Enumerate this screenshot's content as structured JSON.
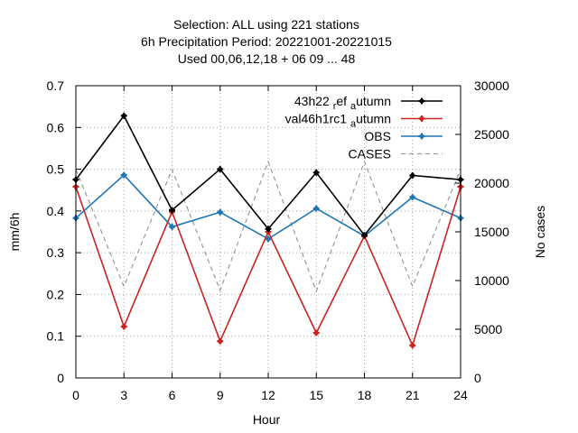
{
  "chart_data": {
    "type": "line",
    "title_lines": [
      "Selection: ALL using   221 stations",
      "6h Precipitation   Period: 20221001-20221015",
      "Used  00,06,12,18  + 06 09 ... 48"
    ],
    "xlabel": "Hour",
    "ylabel": "mm/6h",
    "y2label": "No cases",
    "xlim": [
      0,
      24
    ],
    "ylim": [
      0,
      0.7
    ],
    "y2lim": [
      0,
      30000
    ],
    "x_ticks": [
      "0",
      "3",
      "6",
      "9",
      "12",
      "15",
      "18",
      "21",
      "24"
    ],
    "y_ticks": [
      "0",
      "0.1",
      "0.2",
      "0.3",
      "0.4",
      "0.5",
      "0.6",
      "0.7"
    ],
    "y2_ticks": [
      "0",
      "5000",
      "10000",
      "15000",
      "20000",
      "25000",
      "30000"
    ],
    "grid": true,
    "legend_position": "top-right",
    "x": [
      0,
      3,
      6,
      9,
      12,
      15,
      18,
      21,
      24
    ],
    "series": [
      {
        "name": "43h22 ref autumn",
        "legend_parts": [
          {
            "t": "43h22 ",
            "sub": false
          },
          {
            "t": "r",
            "sub": true
          },
          {
            "t": "ef ",
            "sub": false
          },
          {
            "t": "a",
            "sub": true
          },
          {
            "t": "utumn",
            "sub": false
          }
        ],
        "axis": "y",
        "color": "#000000",
        "style": "solid",
        "values": [
          0.475,
          0.628,
          0.402,
          0.5,
          0.357,
          0.492,
          0.342,
          0.485,
          0.475
        ]
      },
      {
        "name": "val46h1rc1 autumn",
        "legend_parts": [
          {
            "t": "val46h1rc1 ",
            "sub": false
          },
          {
            "t": "a",
            "sub": true
          },
          {
            "t": "utumn",
            "sub": false
          }
        ],
        "axis": "y",
        "color": "#cc2222",
        "style": "solid",
        "values": [
          0.458,
          0.123,
          0.398,
          0.088,
          0.35,
          0.108,
          0.34,
          0.078,
          0.458
        ]
      },
      {
        "name": "OBS",
        "legend_parts": [
          {
            "t": "OBS",
            "sub": false
          }
        ],
        "axis": "y",
        "color": "#1f77b4",
        "style": "solid",
        "values": [
          0.383,
          0.486,
          0.362,
          0.397,
          0.333,
          0.406,
          0.34,
          0.433,
          0.383
        ]
      },
      {
        "name": "CASES",
        "legend_parts": [
          {
            "t": "CASES",
            "sub": false
          }
        ],
        "axis": "y2",
        "color": "#999999",
        "style": "dashed",
        "values": [
          21400,
          9400,
          21400,
          9000,
          22200,
          8900,
          22200,
          9400,
          21400
        ]
      }
    ]
  }
}
